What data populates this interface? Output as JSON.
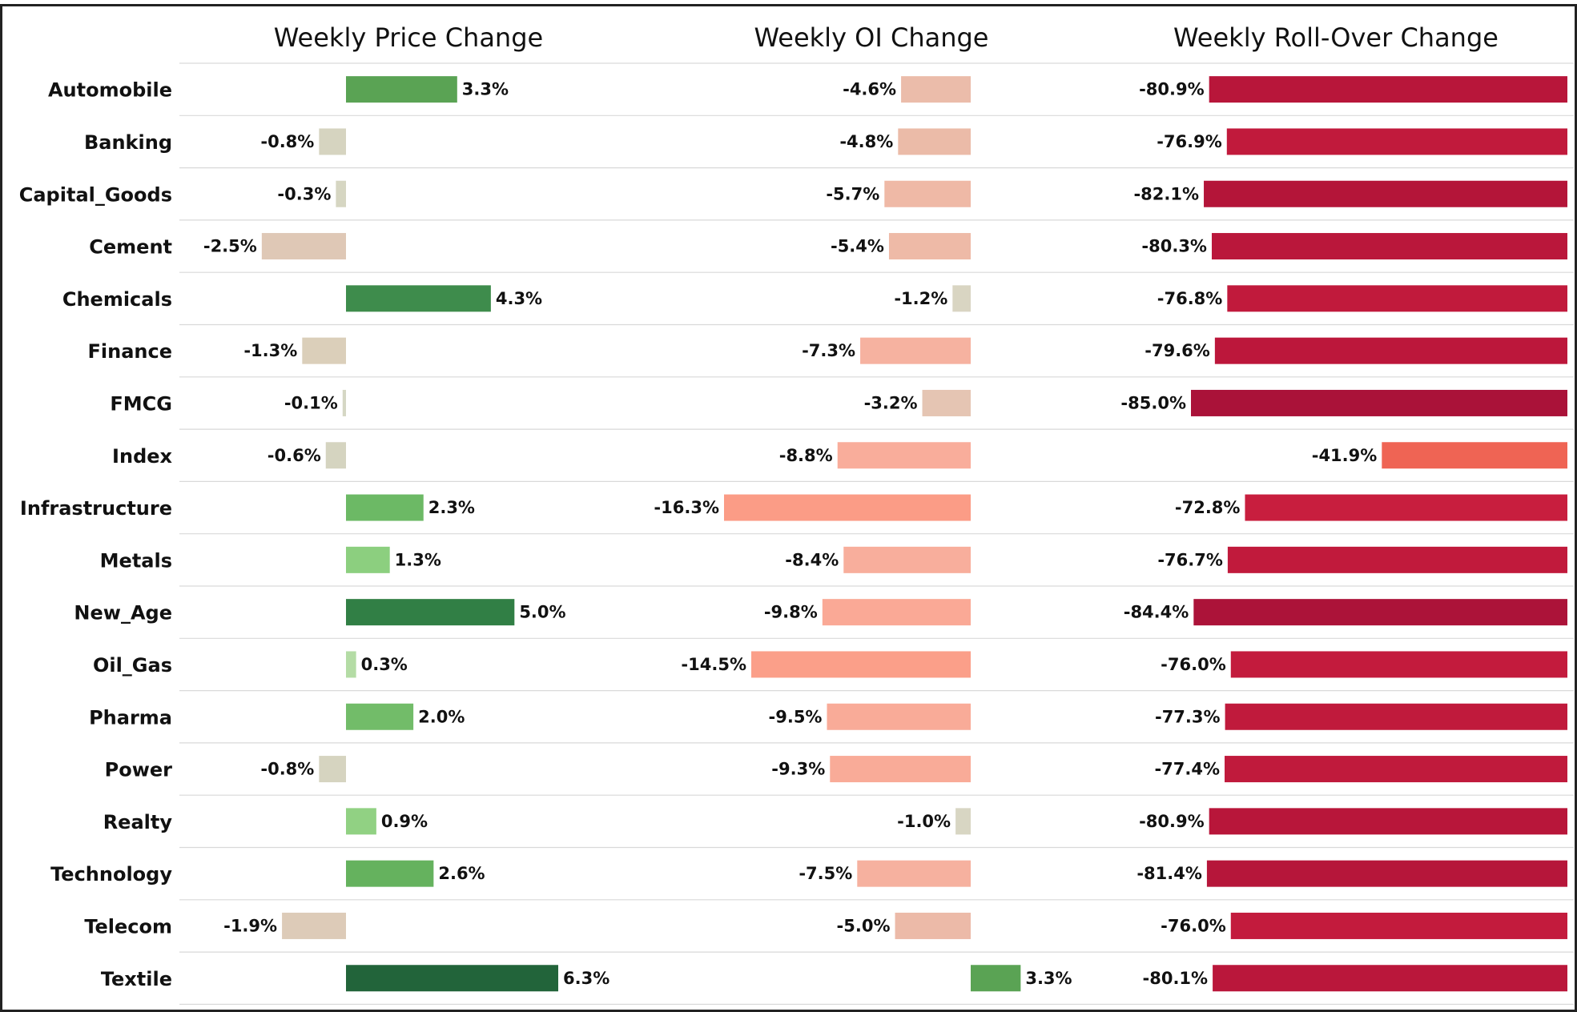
{
  "chart_data": {
    "type": "bar",
    "orientation": "horizontal",
    "categories": [
      "Automobile",
      "Banking",
      "Capital_Goods",
      "Cement",
      "Chemicals",
      "Finance",
      "FMCG",
      "Index",
      "Infrastructure",
      "Metals",
      "New_Age",
      "Oil_Gas",
      "Pharma",
      "Power",
      "Realty",
      "Technology",
      "Telecom",
      "Textile"
    ],
    "series": [
      {
        "name": "Weekly Price Change",
        "values": [
          3.3,
          -0.8,
          -0.3,
          -2.5,
          4.3,
          -1.3,
          -0.1,
          -0.6,
          2.3,
          1.3,
          5.0,
          0.3,
          2.0,
          -0.8,
          0.9,
          2.6,
          -1.9,
          6.3
        ],
        "value_labels": [
          "3.3%",
          "-0.8%",
          "-0.3%",
          "-2.5%",
          "4.3%",
          "-1.3%",
          "-0.1%",
          "-0.6%",
          "2.3%",
          "1.3%",
          "5.0%",
          "0.3%",
          "2.0%",
          "-0.8%",
          "0.9%",
          "2.6%",
          "-1.9%",
          "6.3%"
        ],
        "colors": [
          "#5aa354",
          "#d6d4c0",
          "#d6d6c2",
          "#dfc8b6",
          "#3e8c4c",
          "#dbcfba",
          "#d5d7c4",
          "#d5d4c0",
          "#6cb965",
          "#8ccf7f",
          "#317f45",
          "#b4dca5",
          "#72bc69",
          "#d6d4c0",
          "#91d183",
          "#65b25e",
          "#ddcbb8",
          "#22643a"
        ]
      },
      {
        "name": "Weekly OI Change",
        "values": [
          -4.6,
          -4.8,
          -5.7,
          -5.4,
          -1.2,
          -7.3,
          -3.2,
          -8.8,
          -16.3,
          -8.4,
          -9.8,
          -14.5,
          -9.5,
          -9.3,
          -1.0,
          -7.5,
          -5.0,
          3.3
        ],
        "value_labels": [
          "-4.6%",
          "-4.8%",
          "-5.7%",
          "-5.4%",
          "-1.2%",
          "-7.3%",
          "-3.2%",
          "-8.8%",
          "-16.3%",
          "-8.4%",
          "-9.8%",
          "-14.5%",
          "-9.5%",
          "-9.3%",
          "-1.0%",
          "-7.5%",
          "-5.0%",
          "3.3%"
        ],
        "colors": [
          "#ebbcaa",
          "#ebbba8",
          "#efb9a6",
          "#eebaa7",
          "#d9d5c2",
          "#f6b2a0",
          "#e5c5b3",
          "#f9ad9b",
          "#fb9c86",
          "#f8ae9c",
          "#faa996",
          "#fb9f89",
          "#f9ab98",
          "#f9ab98",
          "#d8d6c3",
          "#f6b19f",
          "#ecbaa8",
          "#5aa354"
        ]
      },
      {
        "name": "Weekly Roll-Over Change",
        "values": [
          -80.9,
          -76.9,
          -82.1,
          -80.3,
          -76.8,
          -79.6,
          -85.0,
          -41.9,
          -72.8,
          -76.7,
          -84.4,
          -76.0,
          -77.3,
          -77.4,
          -80.9,
          -81.4,
          -76.0,
          -80.1
        ],
        "value_labels": [
          "-80.9%",
          "-76.9%",
          "-82.1%",
          "-80.3%",
          "-76.8%",
          "-79.6%",
          "-85.0%",
          "-41.9%",
          "-72.8%",
          "-76.7%",
          "-84.4%",
          "-76.0%",
          "-77.3%",
          "-77.4%",
          "-80.9%",
          "-81.4%",
          "-76.0%",
          "-80.1%"
        ],
        "colors": [
          "#b8163a",
          "#c11a3c",
          "#b41539",
          "#ba173b",
          "#c11a3c",
          "#bc173b",
          "#aa1239",
          "#ef6454",
          "#c81e3e",
          "#c11a3c",
          "#ac1339",
          "#c31b3d",
          "#c01a3c",
          "#c01a3c",
          "#b8163a",
          "#b6163a",
          "#c31b3d",
          "#ba173b"
        ]
      }
    ]
  }
}
